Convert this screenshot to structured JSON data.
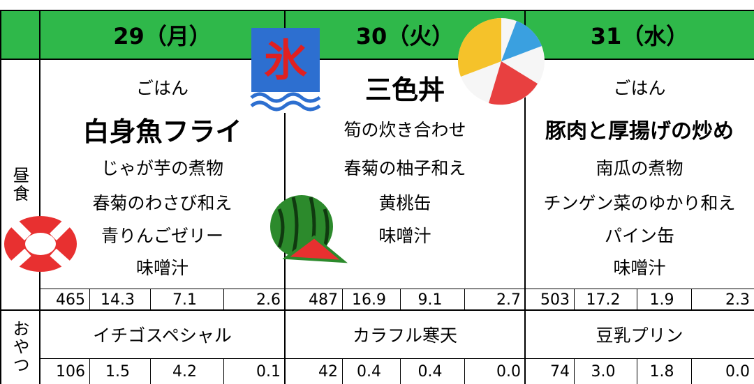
{
  "header": {
    "days": [
      "29（月）",
      "30（火）",
      "31（水）"
    ]
  },
  "labels": {
    "lunch": "昼食",
    "snack": "おやつ"
  },
  "lunch": [
    {
      "items": [
        "ごはん",
        "白身魚フライ",
        "じゃが芋の煮物",
        "春菊のわさび和え",
        "青りんごゼリー",
        "味噌汁"
      ],
      "nutrition": [
        "465",
        "14.3",
        "7.1",
        "2.6"
      ]
    },
    {
      "items": [
        "三色丼",
        "筍の炊き合わせ",
        "春菊の柚子和え",
        "黄桃缶",
        "味噌汁"
      ],
      "nutrition": [
        "487",
        "16.9",
        "9.1",
        "2.7"
      ]
    },
    {
      "items": [
        "ごはん",
        "豚肉と厚揚げの炒め",
        "南瓜の煮物",
        "チンゲン菜のゆかり和え",
        "パイン缶",
        "味噌汁"
      ],
      "nutrition": [
        "503",
        "17.2",
        "1.9",
        "2.3"
      ]
    }
  ],
  "snack": [
    {
      "name": "イチゴスペシャル",
      "nutrition": [
        "106",
        "1.5",
        "4.2",
        "0.1"
      ]
    },
    {
      "name": "カラフル寒天",
      "nutrition": [
        "42",
        "0.4",
        "0.4",
        "0.0"
      ]
    },
    {
      "name": "豆乳プリン",
      "nutrition": [
        "74",
        "3.0",
        "1.8",
        "0.0"
      ]
    }
  ]
}
